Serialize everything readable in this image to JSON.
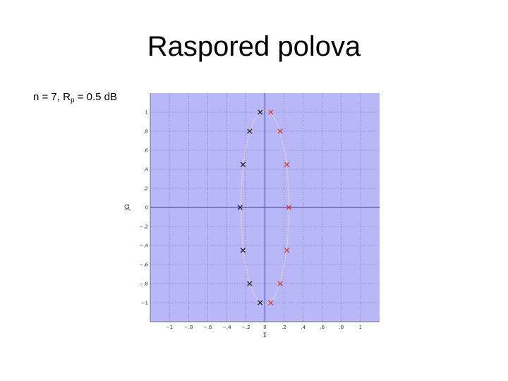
{
  "slide": {
    "title": "Raspored polova",
    "subtitle_prefix": "n = 7, R",
    "subtitle_sub": "p",
    "subtitle_suffix": " = 0.5 dB"
  },
  "chart_data": {
    "type": "scatter",
    "title": "",
    "xlabel": "Σ",
    "ylabel": "jΩ",
    "xlim": [
      -1.2,
      1.2
    ],
    "ylim": [
      -1.2,
      1.2
    ],
    "xticks": [
      -1,
      -0.8,
      -0.6,
      -0.4,
      -0.2,
      0,
      0.2,
      0.4,
      0.6,
      0.8,
      1
    ],
    "yticks": [
      -1,
      -0.8,
      -0.6,
      -0.4,
      -0.2,
      0,
      0.2,
      0.4,
      0.6,
      0.8,
      1
    ],
    "grid": true,
    "background_color": "#b8b8f8",
    "ellipse": {
      "center": [
        0,
        0
      ],
      "semi_axis_x": 0.25,
      "semi_axis_y": 1.02,
      "color": "#d0d0d0"
    },
    "series": [
      {
        "color": "#202020",
        "marker": "x",
        "x": [
          -0.05,
          -0.16,
          -0.23,
          -0.26,
          -0.23,
          -0.16,
          -0.05
        ],
        "y": [
          1.0,
          0.8,
          0.45,
          0.0,
          -0.45,
          -0.8,
          -1.0
        ]
      },
      {
        "color": "#e03030",
        "marker": "x",
        "x": [
          0.06,
          0.16,
          0.23,
          0.25,
          0.23,
          0.16,
          0.06
        ],
        "y": [
          1.0,
          0.8,
          0.45,
          0.0,
          -0.45,
          -0.8,
          -1.0
        ]
      }
    ]
  }
}
